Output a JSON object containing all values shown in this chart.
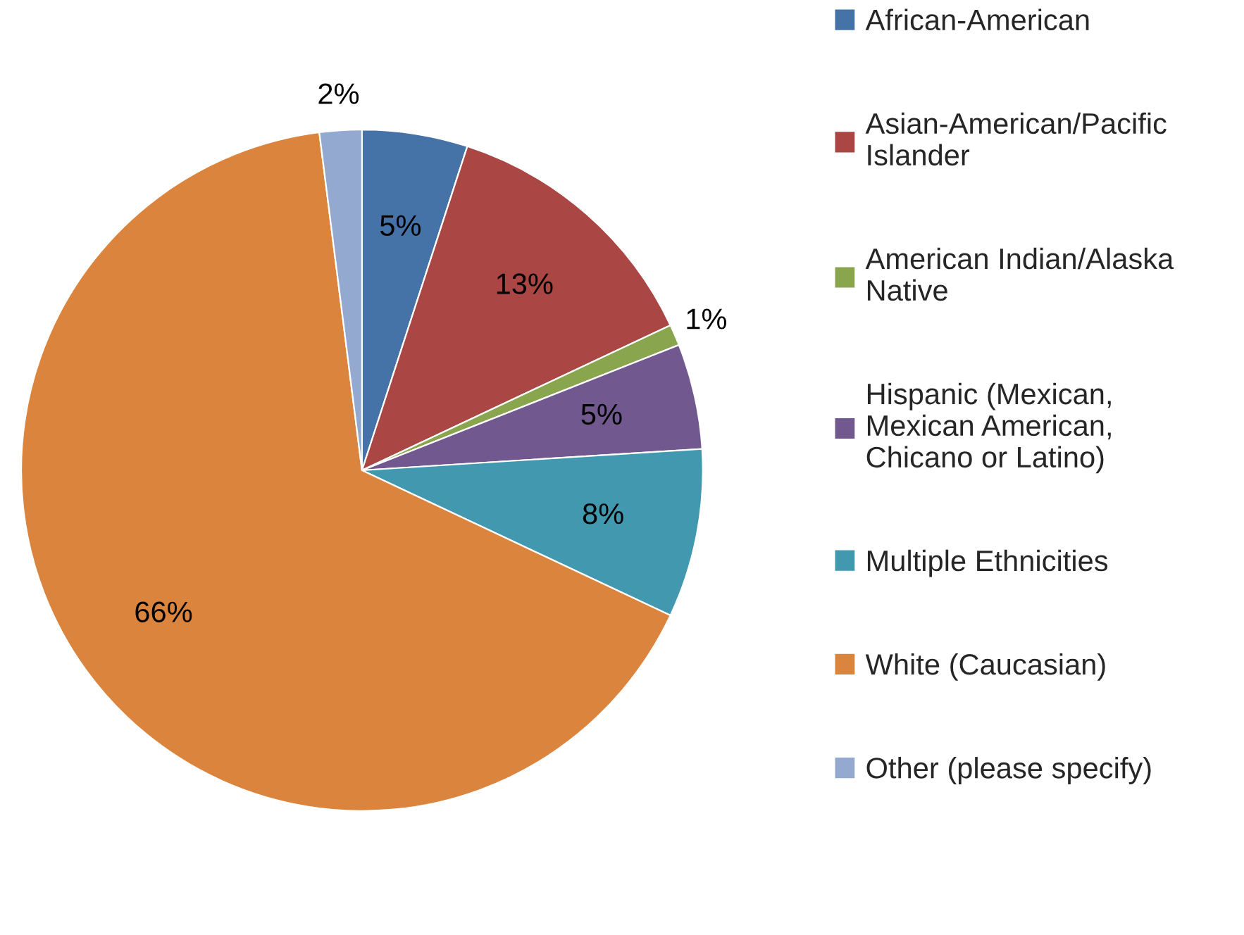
{
  "chart_data": {
    "type": "pie",
    "categories": [
      "African-American",
      "Asian-American/Pacific\nIslander",
      "American Indian/Alaska\nNative",
      "Hispanic (Mexican,\nMexican American,\nChicano or Latino)",
      "Multiple Ethnicities",
      "White (Caucasian)",
      "Other (please specify)"
    ],
    "values": [
      5,
      13,
      1,
      5,
      8,
      66,
      2
    ],
    "colors": [
      "#4572a7",
      "#aa4643",
      "#89a54e",
      "#71588f",
      "#4198af",
      "#db843d",
      "#93a9cf"
    ],
    "value_labels": [
      "5%",
      "13%",
      "1%",
      "5%",
      "8%",
      "66%",
      "2%"
    ],
    "legend": "right"
  }
}
